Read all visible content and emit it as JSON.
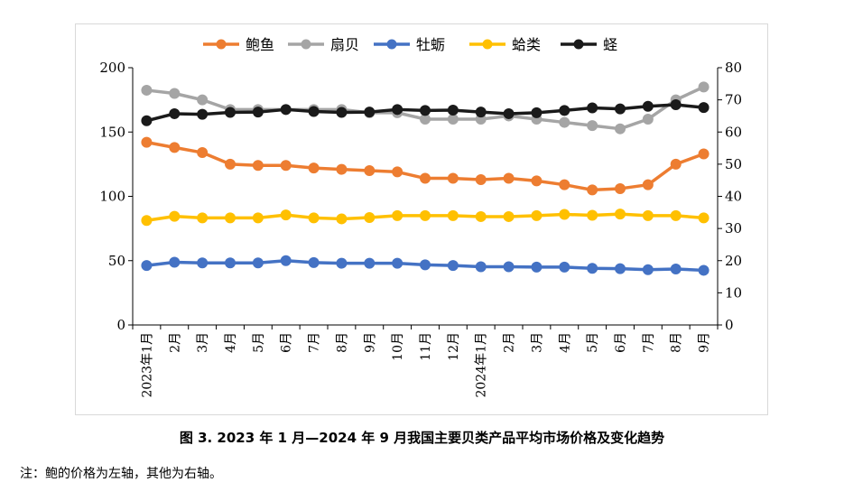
{
  "chart_data": {
    "type": "line",
    "categories": [
      "2023年1月",
      "2月",
      "3月",
      "4月",
      "5月",
      "6月",
      "7月",
      "8月",
      "9月",
      "10月",
      "11月",
      "12月",
      "2024年1月",
      "2月",
      "3月",
      "4月",
      "5月",
      "6月",
      "7月",
      "8月",
      "9月"
    ],
    "left_axis": {
      "ylim": [
        0,
        200
      ],
      "ticks": [
        "0",
        "50",
        "100",
        "150",
        "200"
      ]
    },
    "right_axis": {
      "ylim": [
        0,
        80
      ],
      "ticks": [
        "0",
        "10",
        "20",
        "30",
        "40",
        "50",
        "60",
        "70",
        "80"
      ]
    },
    "legend_position": "top",
    "grid": false,
    "series": [
      {
        "name": "鲍鱼",
        "axis": "left",
        "color": "#ed7d31",
        "values": [
          142,
          138,
          134,
          125,
          124,
          124,
          122,
          121,
          120,
          119,
          114,
          114,
          113,
          114,
          112,
          109,
          105,
          106,
          109,
          125,
          133
        ]
      },
      {
        "name": "扇贝",
        "axis": "right",
        "color": "#a5a5a5",
        "values": [
          73,
          72,
          70,
          67,
          67,
          67,
          67,
          67,
          66,
          66,
          64,
          64,
          64,
          65,
          64,
          63,
          62,
          61,
          64,
          70,
          74
        ]
      },
      {
        "name": "牡蛎",
        "axis": "right",
        "color": "#4472c4",
        "values": [
          18.5,
          19.5,
          19.3,
          19.3,
          19.3,
          20,
          19.4,
          19.2,
          19.2,
          19.2,
          18.7,
          18.5,
          18.1,
          18.1,
          18,
          18,
          17.6,
          17.5,
          17.2,
          17.4,
          17
        ]
      },
      {
        "name": "蛤类",
        "axis": "right",
        "color": "#ffc000",
        "values": [
          32.5,
          33.8,
          33.3,
          33.3,
          33.3,
          34.2,
          33.3,
          33,
          33.4,
          34,
          34,
          34,
          33.7,
          33.7,
          34,
          34.4,
          34.1,
          34.5,
          34,
          34,
          33.3
        ]
      },
      {
        "name": "蛏",
        "axis": "right",
        "color": "#1a1a1a",
        "values": [
          63.5,
          65.7,
          65.5,
          66.1,
          66.2,
          67,
          66.4,
          66.1,
          66.2,
          67,
          66.7,
          66.8,
          66.2,
          65.7,
          66,
          66.7,
          67.5,
          67.2,
          68,
          68.5,
          67.6
        ]
      }
    ]
  },
  "caption": "图 3. 2023 年 1 月—2024 年 9 月我国主要贝类产品平均市场价格及变化趋势",
  "note": "注：鲍的价格为左轴，其他为右轴。"
}
